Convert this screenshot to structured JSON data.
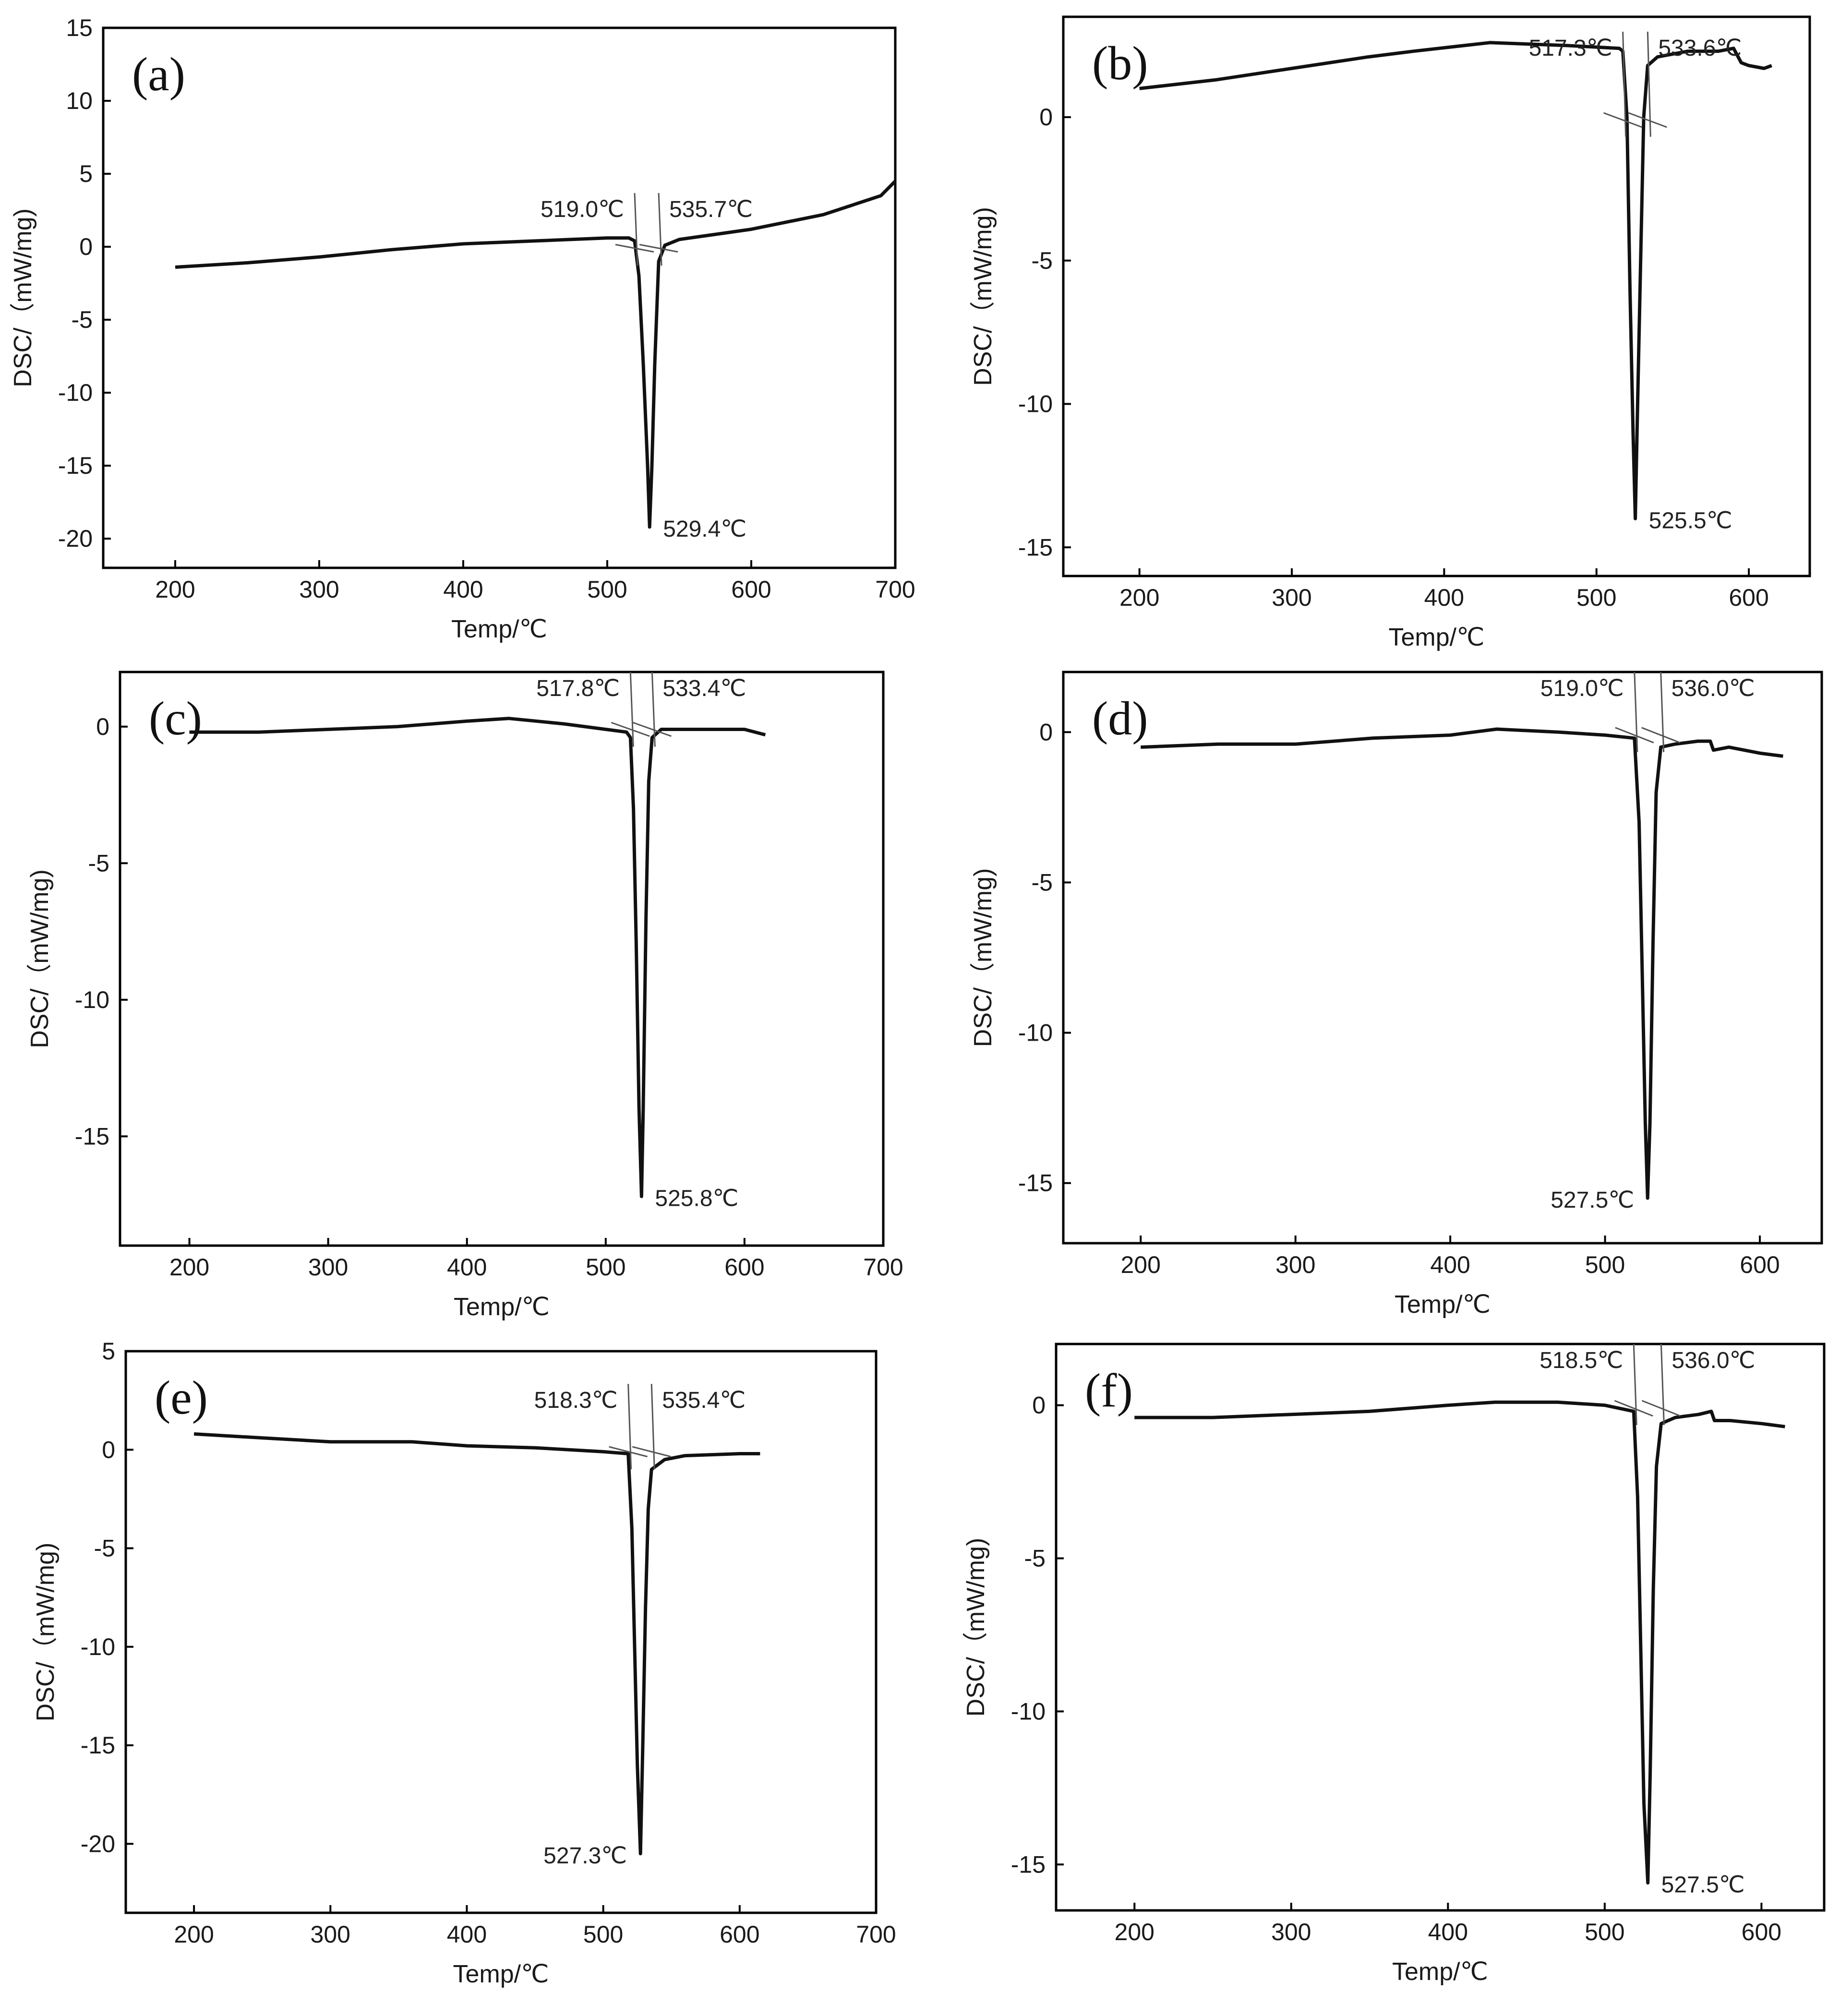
{
  "figure": {
    "background": "#ffffff",
    "line_color": "#111111"
  },
  "chart_data": [
    {
      "type": "line",
      "panel_label": "(a)",
      "xlabel": "Temp/℃",
      "ylabel": "DSC/（mW/mg)",
      "xlim": [
        150,
        700
      ],
      "ylim": [
        -22,
        15
      ],
      "xticks": [
        200,
        300,
        400,
        500,
        600,
        700
      ],
      "yticks": [
        -20,
        -15,
        -10,
        -5,
        0,
        5,
        10,
        15
      ],
      "series": [
        {
          "name": "DSC",
          "points": [
            [
              200,
              -1.4
            ],
            [
              250,
              -1.1
            ],
            [
              300,
              -0.7
            ],
            [
              350,
              -0.2
            ],
            [
              400,
              0.2
            ],
            [
              450,
              0.4
            ],
            [
              500,
              0.6
            ],
            [
              515,
              0.6
            ],
            [
              519,
              0.4
            ],
            [
              522,
              -2
            ],
            [
              525,
              -8
            ],
            [
              528,
              -15
            ],
            [
              529.4,
              -19.2
            ],
            [
              531,
              -15
            ],
            [
              533,
              -8
            ],
            [
              535.7,
              -1
            ],
            [
              540,
              0.1
            ],
            [
              550,
              0.5
            ],
            [
              600,
              1.2
            ],
            [
              650,
              2.2
            ],
            [
              690,
              3.5
            ],
            [
              700,
              4.5
            ]
          ]
        }
      ],
      "annotations": [
        {
          "text": "519.0℃",
          "x": 519.0,
          "kind": "onset"
        },
        {
          "text": "535.7℃",
          "x": 535.7,
          "kind": "endset"
        },
        {
          "text": "529.4℃",
          "x": 529.4,
          "kind": "peak"
        }
      ]
    },
    {
      "type": "line",
      "panel_label": "(b)",
      "xlabel": "Temp/℃",
      "ylabel": "DSC/（mW/mg)",
      "xlim": [
        150,
        640
      ],
      "ylim": [
        -16,
        3.5
      ],
      "xticks": [
        200,
        300,
        400,
        500,
        600
      ],
      "yticks": [
        -15,
        -10,
        -5,
        0
      ],
      "series": [
        {
          "name": "DSC",
          "points": [
            [
              200,
              1.0
            ],
            [
              250,
              1.3
            ],
            [
              300,
              1.7
            ],
            [
              350,
              2.1
            ],
            [
              380,
              2.3
            ],
            [
              430,
              2.6
            ],
            [
              480,
              2.5
            ],
            [
              515,
              2.4
            ],
            [
              517.3,
              2.3
            ],
            [
              520,
              0
            ],
            [
              522,
              -6
            ],
            [
              524,
              -11
            ],
            [
              525.5,
              -14
            ],
            [
              527,
              -10
            ],
            [
              529,
              -5
            ],
            [
              531,
              0
            ],
            [
              533.6,
              1.8
            ],
            [
              540,
              2.1
            ],
            [
              560,
              2.3
            ],
            [
              580,
              2.3
            ],
            [
              590,
              2.4
            ],
            [
              595,
              1.9
            ],
            [
              600,
              1.8
            ],
            [
              610,
              1.7
            ],
            [
              615,
              1.8
            ]
          ]
        }
      ],
      "annotations": [
        {
          "text": "517.3℃",
          "x": 517.3,
          "kind": "onset"
        },
        {
          "text": "533.6℃",
          "x": 533.6,
          "kind": "endset"
        },
        {
          "text": "525.5℃",
          "x": 525.5,
          "kind": "peak"
        }
      ]
    },
    {
      "type": "line",
      "panel_label": "(c)",
      "xlabel": "Temp/℃",
      "ylabel": "DSC/（mW/mg)",
      "xlim": [
        150,
        700
      ],
      "ylim": [
        -19,
        2
      ],
      "xticks": [
        200,
        300,
        400,
        500,
        600,
        700
      ],
      "yticks": [
        -15,
        -10,
        -5,
        0
      ],
      "series": [
        {
          "name": "DSC",
          "points": [
            [
              200,
              -0.2
            ],
            [
              250,
              -0.2
            ],
            [
              300,
              -0.1
            ],
            [
              350,
              0
            ],
            [
              400,
              0.2
            ],
            [
              430,
              0.3
            ],
            [
              470,
              0.1
            ],
            [
              500,
              -0.1
            ],
            [
              515,
              -0.2
            ],
            [
              517.8,
              -0.4
            ],
            [
              520,
              -3
            ],
            [
              522,
              -8
            ],
            [
              524,
              -14
            ],
            [
              525.8,
              -17.2
            ],
            [
              527,
              -14
            ],
            [
              529,
              -7
            ],
            [
              531,
              -2
            ],
            [
              533.4,
              -0.4
            ],
            [
              540,
              -0.1
            ],
            [
              580,
              -0.1
            ],
            [
              600,
              -0.1
            ],
            [
              615,
              -0.3
            ]
          ]
        }
      ],
      "annotations": [
        {
          "text": "517.8℃",
          "x": 517.8,
          "kind": "onset"
        },
        {
          "text": "533.4℃",
          "x": 533.4,
          "kind": "endset"
        },
        {
          "text": "525.8℃",
          "x": 525.8,
          "kind": "peak"
        }
      ]
    },
    {
      "type": "line",
      "panel_label": "(d)",
      "xlabel": "Temp/℃",
      "ylabel": "DSC/（mW/mg)",
      "xlim": [
        150,
        640
      ],
      "ylim": [
        -17,
        2
      ],
      "xticks": [
        200,
        300,
        400,
        500,
        600
      ],
      "yticks": [
        -15,
        -10,
        -5,
        0
      ],
      "series": [
        {
          "name": "DSC",
          "points": [
            [
              200,
              -0.5
            ],
            [
              250,
              -0.4
            ],
            [
              300,
              -0.4
            ],
            [
              350,
              -0.2
            ],
            [
              400,
              -0.1
            ],
            [
              430,
              0.1
            ],
            [
              470,
              0
            ],
            [
              500,
              -0.1
            ],
            [
              519,
              -0.2
            ],
            [
              522,
              -3
            ],
            [
              524,
              -8
            ],
            [
              526,
              -13
            ],
            [
              527.5,
              -15.5
            ],
            [
              529,
              -13
            ],
            [
              531,
              -7
            ],
            [
              533,
              -2
            ],
            [
              536,
              -0.5
            ],
            [
              545,
              -0.4
            ],
            [
              560,
              -0.3
            ],
            [
              568,
              -0.3
            ],
            [
              570,
              -0.6
            ],
            [
              580,
              -0.5
            ],
            [
              600,
              -0.7
            ],
            [
              615,
              -0.8
            ]
          ]
        }
      ],
      "annotations": [
        {
          "text": "519.0℃",
          "x": 519.0,
          "kind": "onset"
        },
        {
          "text": "536.0℃",
          "x": 536.0,
          "kind": "endset"
        },
        {
          "text": "527.5℃",
          "x": 527.5,
          "kind": "peak"
        }
      ]
    },
    {
      "type": "line",
      "panel_label": "(e)",
      "xlabel": "Temp/℃",
      "ylabel": "DSC/（mW/mg)",
      "xlim": [
        150,
        700
      ],
      "ylim": [
        -23.5,
        5
      ],
      "xticks": [
        200,
        300,
        400,
        500,
        600,
        700
      ],
      "yticks": [
        -20,
        -15,
        -10,
        -5,
        0,
        5
      ],
      "series": [
        {
          "name": "DSC",
          "points": [
            [
              200,
              0.8
            ],
            [
              250,
              0.6
            ],
            [
              300,
              0.4
            ],
            [
              360,
              0.4
            ],
            [
              400,
              0.2
            ],
            [
              450,
              0.1
            ],
            [
              500,
              -0.1
            ],
            [
              518.3,
              -0.2
            ],
            [
              521,
              -4
            ],
            [
              523,
              -10
            ],
            [
              525,
              -16
            ],
            [
              527.3,
              -20.5
            ],
            [
              529,
              -15
            ],
            [
              531,
              -8
            ],
            [
              533,
              -3
            ],
            [
              535.4,
              -1
            ],
            [
              545,
              -0.5
            ],
            [
              560,
              -0.3
            ],
            [
              600,
              -0.2
            ],
            [
              615,
              -0.2
            ]
          ]
        }
      ],
      "annotations": [
        {
          "text": "518.3℃",
          "x": 518.3,
          "kind": "onset"
        },
        {
          "text": "535.4℃",
          "x": 535.4,
          "kind": "endset"
        },
        {
          "text": "527.3℃",
          "x": 527.3,
          "kind": "peak"
        }
      ]
    },
    {
      "type": "line",
      "panel_label": "(f)",
      "xlabel": "Temp/℃",
      "ylabel": "DSC/（mW/mg)",
      "xlim": [
        150,
        640
      ],
      "ylim": [
        -16.5,
        2
      ],
      "xticks": [
        200,
        300,
        400,
        500,
        600
      ],
      "yticks": [
        -15,
        -10,
        -5,
        0
      ],
      "series": [
        {
          "name": "DSC",
          "points": [
            [
              200,
              -0.4
            ],
            [
              250,
              -0.4
            ],
            [
              300,
              -0.3
            ],
            [
              350,
              -0.2
            ],
            [
              400,
              0
            ],
            [
              430,
              0.1
            ],
            [
              470,
              0.1
            ],
            [
              500,
              0
            ],
            [
              518.5,
              -0.2
            ],
            [
              521,
              -3
            ],
            [
              523,
              -8
            ],
            [
              525,
              -13
            ],
            [
              527.5,
              -15.6
            ],
            [
              529,
              -12
            ],
            [
              531,
              -6
            ],
            [
              533,
              -2
            ],
            [
              536,
              -0.6
            ],
            [
              545,
              -0.4
            ],
            [
              560,
              -0.3
            ],
            [
              568,
              -0.2
            ],
            [
              570,
              -0.5
            ],
            [
              580,
              -0.5
            ],
            [
              600,
              -0.6
            ],
            [
              615,
              -0.7
            ]
          ]
        }
      ],
      "annotations": [
        {
          "text": "518.5℃",
          "x": 518.5,
          "kind": "onset"
        },
        {
          "text": "536.0℃",
          "x": 536.0,
          "kind": "endset"
        },
        {
          "text": "527.5℃",
          "x": 527.5,
          "kind": "peak"
        }
      ]
    }
  ]
}
